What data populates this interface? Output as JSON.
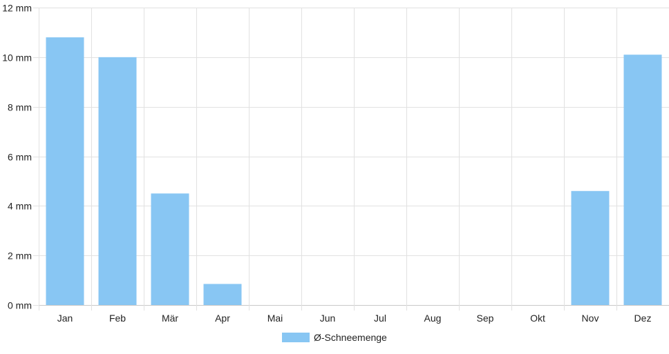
{
  "chart_data": {
    "type": "bar",
    "categories": [
      "Jan",
      "Feb",
      "Mär",
      "Apr",
      "Mai",
      "Jun",
      "Jul",
      "Aug",
      "Sep",
      "Okt",
      "Nov",
      "Dez"
    ],
    "series": [
      {
        "name": "Ø-Schneemenge",
        "values": [
          10.8,
          10.0,
          4.5,
          0.85,
          0,
          0,
          0,
          0,
          0,
          0,
          4.6,
          10.1
        ],
        "color": "#88c6f3"
      }
    ],
    "ylim": [
      0,
      12
    ],
    "yticks": [
      0,
      2,
      4,
      6,
      8,
      10,
      12
    ],
    "ytick_labels": [
      "0 mm",
      "2 mm",
      "4 mm",
      "6 mm",
      "8 mm",
      "10 mm",
      "12 mm"
    ],
    "grid": true,
    "gridColor": "#e1e1e1",
    "legend": "bottom-center",
    "title": "",
    "xlabel": "",
    "ylabel": ""
  }
}
